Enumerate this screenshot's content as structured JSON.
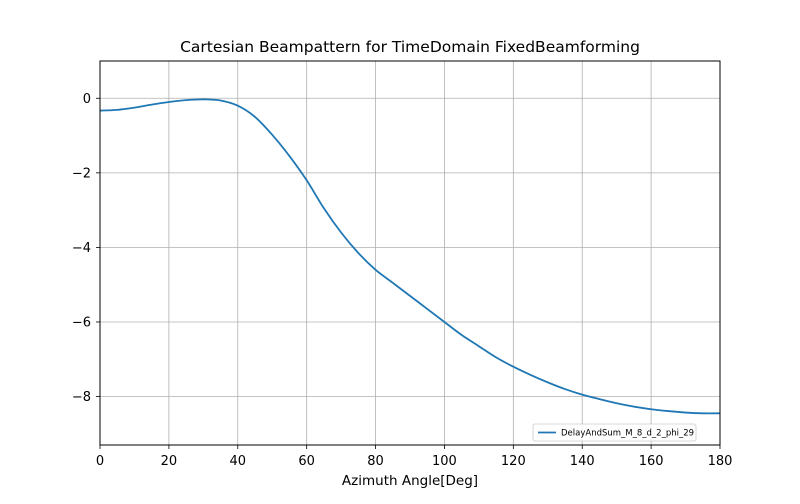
{
  "chart_data": {
    "type": "line",
    "title": "Cartesian Beampattern for TimeDomain FixedBeamforming",
    "xlabel": "Azimuth Angle[Deg]",
    "ylabel": "",
    "xlim": [
      0,
      180
    ],
    "ylim": [
      -9.3,
      1.0
    ],
    "xticks": [
      0,
      20,
      40,
      60,
      80,
      100,
      120,
      140,
      160,
      180
    ],
    "xtick_labels": [
      "0",
      "20",
      "40",
      "60",
      "80",
      "100",
      "120",
      "140",
      "160",
      "180"
    ],
    "yticks": [
      0,
      -2,
      -4,
      -6,
      -8
    ],
    "ytick_labels": [
      "0",
      "−2",
      "−4",
      "−6",
      "−8"
    ],
    "grid": true,
    "legend_position": "lower-right",
    "series": [
      {
        "name": "DelayAndSum_M_8_d_2_phi_29",
        "color": "#1f77b4",
        "x": [
          0,
          5,
          10,
          15,
          20,
          25,
          30,
          35,
          40,
          45,
          50,
          55,
          60,
          65,
          70,
          75,
          80,
          85,
          90,
          95,
          100,
          105,
          110,
          115,
          120,
          125,
          130,
          135,
          140,
          145,
          150,
          155,
          160,
          165,
          170,
          175,
          180
        ],
        "y": [
          -0.33,
          -0.31,
          -0.25,
          -0.17,
          -0.1,
          -0.05,
          -0.03,
          -0.06,
          -0.2,
          -0.5,
          -0.98,
          -1.55,
          -2.2,
          -2.95,
          -3.6,
          -4.15,
          -4.6,
          -4.95,
          -5.3,
          -5.65,
          -6.0,
          -6.35,
          -6.65,
          -6.95,
          -7.2,
          -7.42,
          -7.62,
          -7.8,
          -7.95,
          -8.07,
          -8.18,
          -8.27,
          -8.34,
          -8.39,
          -8.43,
          -8.45,
          -8.45
        ]
      }
    ]
  }
}
